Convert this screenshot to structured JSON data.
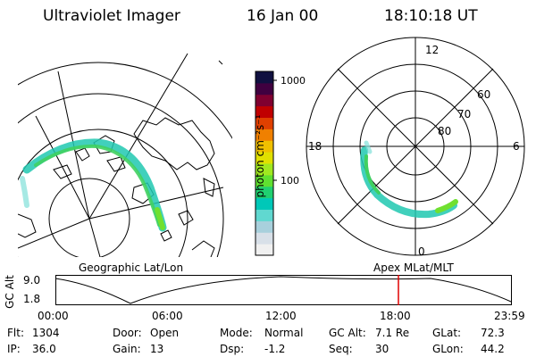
{
  "header": {
    "instrument": "Ultraviolet Imager",
    "date": "16 Jan 00",
    "time": "18:10:18 UT"
  },
  "colorbar": {
    "label": "photon cm⁻²s⁻¹",
    "ticks": [
      "1000",
      "100"
    ],
    "colors": [
      "#f0f0f0",
      "#d8e0e8",
      "#a8d0dc",
      "#60d8d0",
      "#00c8b8",
      "#20d070",
      "#60e030",
      "#a0e820",
      "#e0e000",
      "#f0c000",
      "#f08000",
      "#e04000",
      "#c00000",
      "#800030",
      "#400040",
      "#101040"
    ]
  },
  "polar_plot": {
    "labels": [
      "12",
      "60",
      "70",
      "80",
      "18",
      "6",
      "0"
    ]
  },
  "map_caption": "Geographic Lat/Lon",
  "coord_caption": "Apex MLat/MLT",
  "altitude": {
    "axis_label": "GC Alt",
    "y_ticks": [
      "9.0",
      "1.8"
    ],
    "x_ticks": [
      "00:00",
      "06:00",
      "12:00",
      "18:00",
      "23:59"
    ],
    "marker_color": "#e00000"
  },
  "footer": [
    [
      {
        "label": "Flt:",
        "value": "1304"
      },
      {
        "label": "Door:",
        "value": "Open"
      },
      {
        "label": "Mode:",
        "value": "Normal"
      },
      {
        "label": "GC Alt:",
        "value": "7.1 Re"
      },
      {
        "label": "GLat:",
        "value": "72.3"
      }
    ],
    [
      {
        "label": "IP:",
        "value": "36.0"
      },
      {
        "label": "Gain:",
        "value": "13"
      },
      {
        "label": "Dsp:",
        "value": "-1.2"
      },
      {
        "label": "Seq:",
        "value": "30"
      },
      {
        "label": "GLon:",
        "value": "44.2"
      }
    ]
  ]
}
